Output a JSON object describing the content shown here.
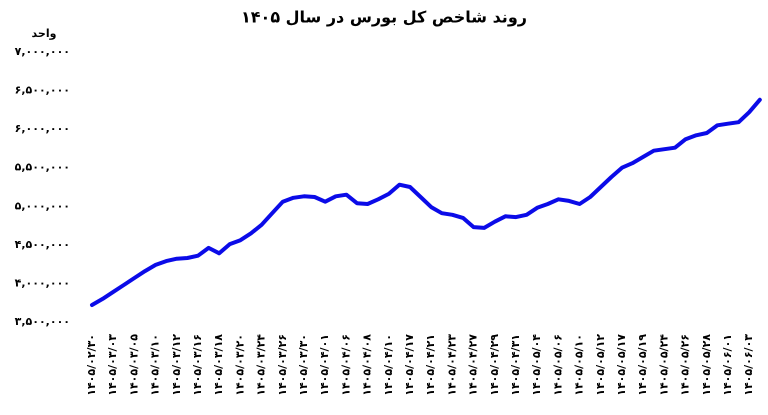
{
  "chart_data": {
    "type": "line",
    "title": "روند شاخص کل بورس در سال ۱۴۰۵",
    "y_label": "واحد",
    "categories": [
      "۱۴۰۵/۰۲/۳۰",
      null,
      "۱۴۰۵/۰۳/۰۳",
      null,
      "۱۴۰۵/۰۳/۰۵",
      null,
      "۱۴۰۵/۰۳/۱۰",
      null,
      "۱۴۰۵/۰۳/۱۲",
      null,
      "۱۴۰۵/۰۳/۱۶",
      null,
      "۱۴۰۵/۰۳/۱۸",
      null,
      "۱۴۰۵/۰۳/۲۰",
      null,
      "۱۴۰۵/۰۳/۲۴",
      null,
      "۱۴۰۵/۰۳/۲۶",
      null,
      "۱۴۰۵/۰۳/۳۰",
      null,
      "۱۴۰۵/۰۴/۰۱",
      null,
      "۱۴۰۵/۰۴/۰۶",
      null,
      "۱۴۰۵/۰۴/۰۸",
      null,
      "۱۴۰۵/۰۴/۱۰",
      null,
      "۱۴۰۵/۰۴/۱۷",
      null,
      "۱۴۰۵/۰۴/۲۱",
      null,
      "۱۴۰۵/۰۴/۲۳",
      null,
      "۱۴۰۵/۰۴/۲۷",
      null,
      "۱۴۰۵/۰۴/۲۹",
      null,
      "۱۴۰۵/۰۴/۳۱",
      null,
      "۱۴۰۵/۰۵/۰۴",
      null,
      "۱۴۰۵/۰۵/۰۶",
      null,
      "۱۴۰۵/۰۵/۱۰",
      null,
      "۱۴۰۵/۰۵/۱۲",
      null,
      "۱۴۰۵/۰۵/۱۷",
      null,
      "۱۴۰۵/۰۵/۱۹",
      null,
      "۱۴۰۵/۰۵/۲۴",
      null,
      "۱۴۰۵/۰۵/۲۶",
      null,
      "۱۴۰۵/۰۵/۲۸",
      null,
      "۱۴۰۵/۰۶/۰۱",
      null,
      "۱۴۰۵/۰۶/۰۳",
      null
    ],
    "values": [
      3720000,
      3800000,
      3890000,
      3980000,
      4070000,
      4160000,
      4240000,
      4290000,
      4320000,
      4330000,
      4360000,
      4460000,
      4390000,
      4510000,
      4560000,
      4650000,
      4760000,
      4910000,
      5060000,
      5110000,
      5130000,
      5120000,
      5060000,
      5130000,
      5150000,
      5040000,
      5030000,
      5090000,
      5160000,
      5280000,
      5250000,
      5120000,
      4990000,
      4910000,
      4890000,
      4850000,
      4730000,
      4720000,
      4800000,
      4870000,
      4860000,
      4890000,
      4980000,
      5030000,
      5090000,
      5070000,
      5030000,
      5120000,
      5250000,
      5380000,
      5500000,
      5560000,
      5640000,
      5720000,
      5740000,
      5760000,
      5870000,
      5920000,
      5950000,
      6050000,
      6070000,
      6090000,
      6220000,
      6380000
    ],
    "color": "#0b0be8",
    "ylim": [
      3500000,
      7000000
    ],
    "yticks": [
      {
        "value": 3500000,
        "label": "۳,۵۰۰,۰۰۰"
      },
      {
        "value": 4000000,
        "label": "۴,۰۰۰,۰۰۰"
      },
      {
        "value": 4500000,
        "label": "۴,۵۰۰,۰۰۰"
      },
      {
        "value": 5000000,
        "label": "۵,۰۰۰,۰۰۰"
      },
      {
        "value": 5500000,
        "label": "۵,۵۰۰,۰۰۰"
      },
      {
        "value": 6000000,
        "label": "۶,۰۰۰,۰۰۰"
      },
      {
        "value": 6500000,
        "label": "۶,۵۰۰,۰۰۰"
      },
      {
        "value": 7000000,
        "label": "۷,۰۰۰,۰۰۰"
      }
    ],
    "grid": false
  }
}
